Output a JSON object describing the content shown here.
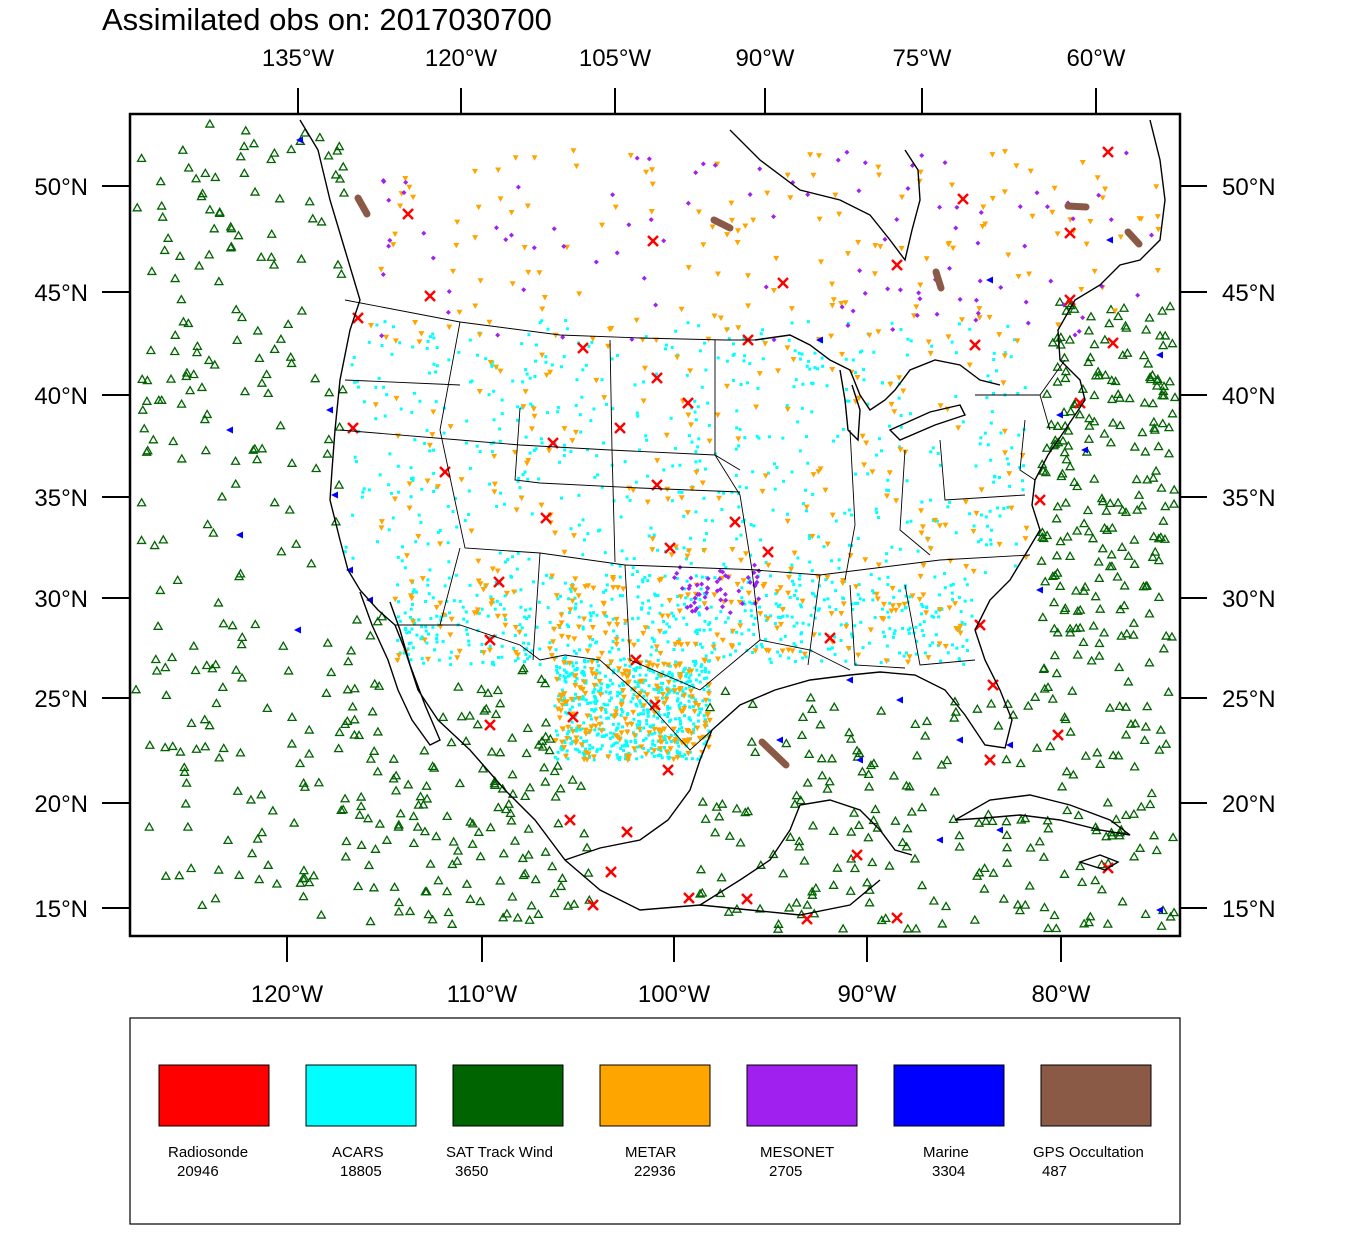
{
  "title": "Assimilated obs on: 2017030700",
  "axes": {
    "top_labels": [
      "135°W",
      "120°W",
      "105°W",
      "90°W",
      "75°W",
      "60°W"
    ],
    "bottom_labels": [
      "120°W",
      "110°W",
      "100°W",
      "90°W",
      "80°W"
    ],
    "left_labels": [
      "50°N",
      "45°N",
      "40°N",
      "35°N",
      "30°N",
      "25°N",
      "20°N",
      "15°N"
    ],
    "right_labels": [
      "50°N",
      "45°N",
      "40°N",
      "35°N",
      "30°N",
      "25°N",
      "20°N",
      "15°N"
    ]
  },
  "legend": [
    {
      "label": "Radiosonde",
      "count": "20946",
      "color": "#ff0000",
      "marker": "cross"
    },
    {
      "label": "ACARS",
      "count": "18805",
      "color": "#00ffff",
      "marker": "square"
    },
    {
      "label": "SAT Track Wind",
      "count": "3650",
      "color": "#006400",
      "marker": "triangle-up"
    },
    {
      "label": "METAR",
      "count": "22936",
      "color": "#ffa500",
      "marker": "triangle-down"
    },
    {
      "label": "MESONET",
      "count": "2705",
      "color": "#a020f0",
      "marker": "diamond"
    },
    {
      "label": "Marine",
      "count": "3304",
      "color": "#0000ff",
      "marker": "triangle-left"
    },
    {
      "label": "GPS Occultation",
      "count": "487",
      "color": "#8b5a46",
      "marker": "streak"
    }
  ]
}
